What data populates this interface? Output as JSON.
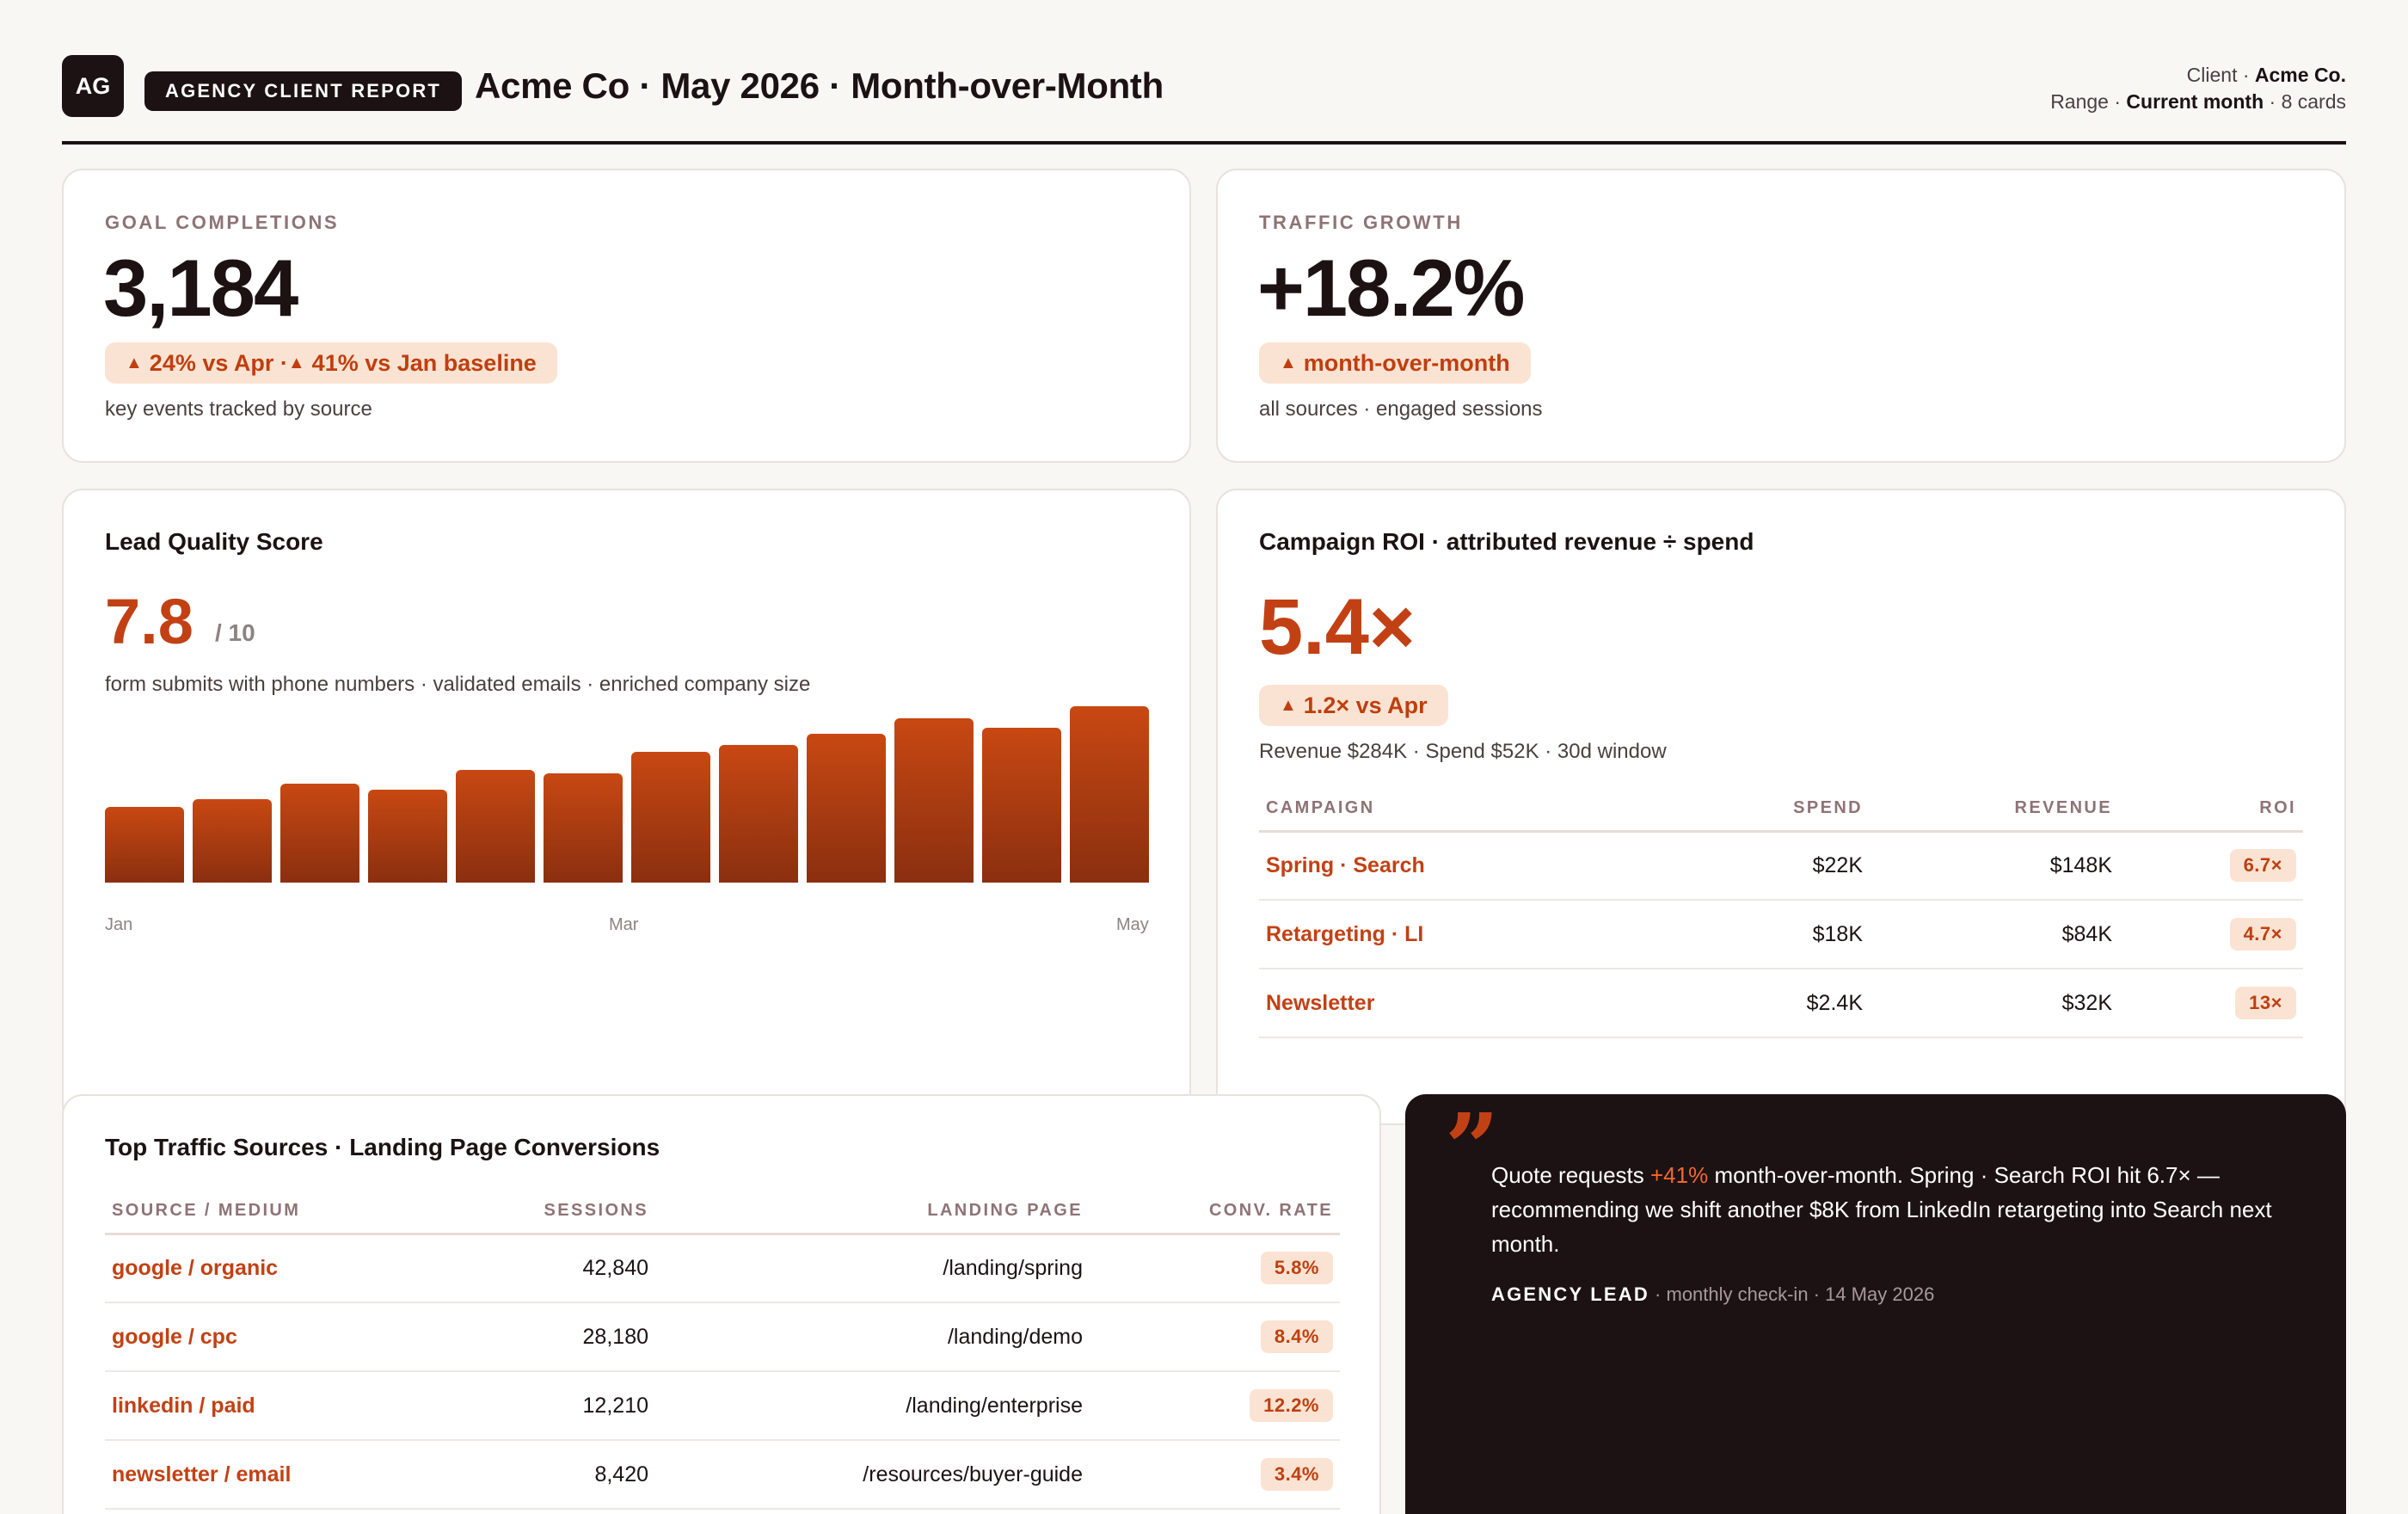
{
  "header": {
    "logo": "AG",
    "tag": "AGENCY CLIENT REPORT",
    "title": "Acme Co · May 2026 · Month-over-Month",
    "client_label": "Client · ",
    "client_value": "Acme Co.",
    "range_label": "Range · ",
    "range_value": "Current month",
    "range_suffix": " · 8 cards"
  },
  "goal": {
    "label": "GOAL COMPLETIONS",
    "value": "3,184",
    "delta": "24% vs Apr · ",
    "delta2": "41% vs Jan baseline",
    "caption": "key events tracked by source"
  },
  "traffic": {
    "label": "TRAFFIC GROWTH",
    "value": "+18.2%",
    "delta": "month-over-month",
    "caption": "all sources · engaged sessions"
  },
  "lead": {
    "title": "Lead Quality Score",
    "value": "7.8",
    "scale": "/ 10",
    "caption": "form submits with phone numbers · validated emails · enriched company size",
    "ticks": [
      "Jan",
      "Mar",
      "May"
    ]
  },
  "chart_data": {
    "type": "bar",
    "categories": [
      "1",
      "2",
      "3",
      "4",
      "5",
      "6",
      "7",
      "8",
      "9",
      "10",
      "11",
      "12"
    ],
    "values": [
      6.8,
      7.5,
      8.9,
      8.4,
      10.2,
      9.9,
      11.8,
      12.4,
      13.4,
      14.8,
      14.0,
      15.9
    ],
    "ylim": [
      0,
      16
    ],
    "tick_labels": [
      "Jan",
      "Mar",
      "May"
    ],
    "color": "#c24114"
  },
  "roi": {
    "title": "Campaign ROI · attributed revenue ÷ spend",
    "value": "5.4×",
    "delta": "1.2× vs Apr",
    "caption": "Revenue $284K · Spend $52K · 30d window",
    "columns": [
      "CAMPAIGN",
      "SPEND",
      "REVENUE",
      "ROI"
    ],
    "rows": [
      {
        "campaign": "Spring · Search",
        "spend": "$22K",
        "revenue": "$148K",
        "roi": "6.7×"
      },
      {
        "campaign": "Retargeting · LI",
        "spend": "$18K",
        "revenue": "$84K",
        "roi": "4.7×"
      },
      {
        "campaign": "Newsletter",
        "spend": "$2.4K",
        "revenue": "$32K",
        "roi": "13×"
      }
    ]
  },
  "sources": {
    "title": "Top Traffic Sources · Landing Page Conversions",
    "columns": [
      "SOURCE / MEDIUM",
      "SESSIONS",
      "LANDING PAGE",
      "CONV. RATE"
    ],
    "rows": [
      {
        "source": "google / organic",
        "sessions": "42,840",
        "page": "/landing/spring",
        "rate": "5.8%"
      },
      {
        "source": "google / cpc",
        "sessions": "28,180",
        "page": "/landing/demo",
        "rate": "8.4%"
      },
      {
        "source": "linkedin / paid",
        "sessions": "12,210",
        "page": "/landing/enterprise",
        "rate": "12.2%"
      },
      {
        "source": "newsletter / email",
        "sessions": "8,420",
        "page": "/resources/buyer-guide",
        "rate": "3.4%"
      }
    ]
  },
  "quote": {
    "mark": "”",
    "text_a": "Quote requests ",
    "text_hl": "+41%",
    "text_b": " month-over-month. Spring · Search ROI hit 6.7× — recommending we shift another $8K from LinkedIn retargeting into Search next month.",
    "author": "AGENCY LEAD",
    "context": " · monthly check-in · 14 May 2026"
  },
  "colors": {
    "accent": "#c24114",
    "accent_soft": "#fbe3d3",
    "ink": "#1c1214",
    "background": "#f9f7f4"
  }
}
